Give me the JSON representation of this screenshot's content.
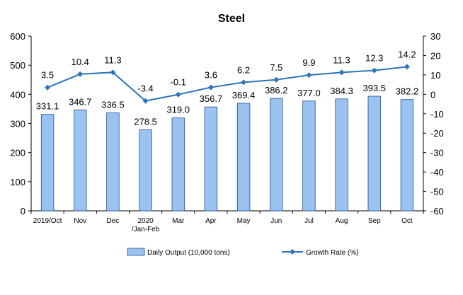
{
  "chart_data": {
    "type": "bar",
    "title": "Steel",
    "categories": [
      "2019/Oct",
      "Nov",
      "Dec",
      "2020 /Jan-Feb",
      "Mar",
      "Apr",
      "May",
      "Jun",
      "Jul",
      "Aug",
      "Sep",
      "Oct"
    ],
    "category_lines": [
      [
        "2019/Oct"
      ],
      [
        "Nov"
      ],
      [
        "Dec"
      ],
      [
        "2020",
        "/Jan-Feb"
      ],
      [
        "Mar"
      ],
      [
        "Apr"
      ],
      [
        "May"
      ],
      [
        "Jun"
      ],
      [
        "Jul"
      ],
      [
        "Aug"
      ],
      [
        "Sep"
      ],
      [
        "Oct"
      ]
    ],
    "series": [
      {
        "name": "Daily Output (10,000 tons)",
        "type": "bar",
        "axis": "left",
        "values": [
          331.1,
          346.7,
          336.5,
          278.5,
          319.0,
          356.7,
          369.4,
          386.2,
          377.0,
          384.3,
          393.5,
          382.2
        ],
        "labels": [
          "331.1",
          "346.7",
          "336.5",
          "278.5",
          "319.0",
          "356.7",
          "369.4",
          "386.2",
          "377.0",
          "384.3",
          "393.5",
          "382.2"
        ]
      },
      {
        "name": "Growth Rate (%)",
        "type": "line",
        "axis": "right",
        "values": [
          3.5,
          10.4,
          11.3,
          -3.4,
          -0.1,
          3.6,
          6.2,
          7.5,
          9.9,
          11.3,
          12.3,
          14.2
        ],
        "labels": [
          "3.5",
          "10.4",
          "11.3",
          "-3.4",
          "-0.1",
          "3.6",
          "6.2",
          "7.5",
          "9.9",
          "11.3",
          "12.3",
          "14.2"
        ]
      }
    ],
    "y_left": {
      "min": 0,
      "max": 600,
      "ticks": [
        "0",
        "100",
        "200",
        "300",
        "400",
        "500",
        "600"
      ]
    },
    "y_right": {
      "min": -60,
      "max": 30,
      "ticks": [
        "-60",
        "-50",
        "-40",
        "-30",
        "-20",
        "-10",
        "0",
        "10",
        "20",
        "30"
      ]
    },
    "grid": false,
    "legend_position": "bottom",
    "colors": {
      "bar_fill": "#9cc3f0",
      "bar_stroke": "#1f4e9a",
      "line": "#2e75b6",
      "axis": "#000000"
    }
  }
}
